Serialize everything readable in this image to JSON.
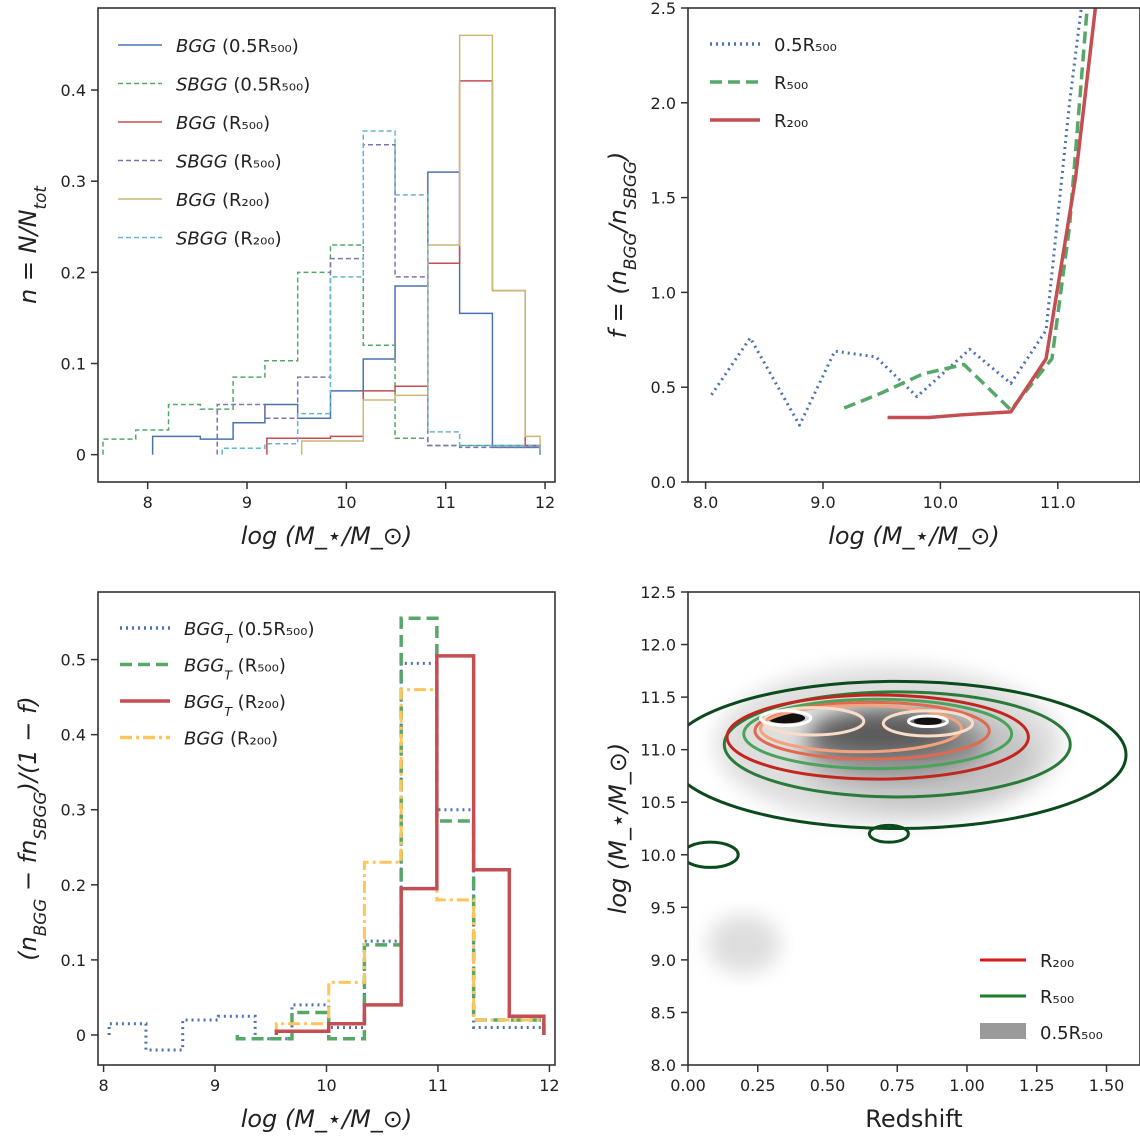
{
  "figure": {
    "width": 1140,
    "height": 1141
  },
  "chart_data": [
    {
      "id": "panel-a",
      "type": "line",
      "style": "step",
      "xlabel": "log (M_⋆/M_⊙)",
      "ylabel": "n = N/N_tot",
      "xlim": [
        7.5,
        12.1
      ],
      "ylim": [
        -0.03,
        0.49
      ],
      "xticks": [
        8,
        9,
        10,
        11,
        12
      ],
      "yticks": [
        0.0,
        0.1,
        0.2,
        0.3,
        0.4
      ],
      "grid": false,
      "legend": "top-left",
      "edges": [
        7.55,
        7.88,
        8.21,
        8.53,
        8.86,
        9.18,
        9.51,
        9.84,
        10.17,
        10.49,
        10.82,
        11.14,
        11.47,
        11.8
      ],
      "series": [
        {
          "name": "BGG (0.5R500)",
          "color": "#4c72b0",
          "dash": "",
          "width": 1.5,
          "range": [
            8.05,
            11.95
          ],
          "values": [
            0.02,
            0.017,
            0.035,
            0.055,
            0.04,
            0.07,
            0.105,
            0.185,
            0.31,
            0.155,
            0.008
          ]
        },
        {
          "name": "SBGG (0.5R500)",
          "color": "#55a868",
          "dash": "5,3",
          "width": 1.5,
          "range": [
            7.55,
            11.95
          ],
          "values": [
            0.017,
            0.027,
            0.055,
            0.05,
            0.085,
            0.103,
            0.2,
            0.23,
            0.12,
            0.018,
            0.01
          ]
        },
        {
          "name": "BGG (R500)",
          "color": "#c44e52",
          "dash": "",
          "width": 1.5,
          "range": [
            9.2,
            11.95
          ],
          "values": [
            0.018,
            0.02,
            0.07,
            0.075,
            0.21,
            0.41,
            0.18,
            0.01
          ]
        },
        {
          "name": "SBGG (R500)",
          "color": "#8172b2",
          "dash": "5,3",
          "width": 1.5,
          "range": [
            8.7,
            11.95
          ],
          "values": [
            0.055,
            0.04,
            0.085,
            0.215,
            0.34,
            0.195,
            0.01,
            0.008
          ]
        },
        {
          "name": "BGG (R200)",
          "color": "#ccb974",
          "dash": "",
          "width": 1.5,
          "range": [
            9.55,
            11.95
          ],
          "values": [
            0.015,
            0.06,
            0.065,
            0.23,
            0.46,
            0.18,
            0.02
          ]
        },
        {
          "name": "SBGG (R200)",
          "color": "#64b5cd",
          "dash": "5,3",
          "width": 1.5,
          "range": [
            8.75,
            11.95
          ],
          "values": [
            0.007,
            0.012,
            0.045,
            0.195,
            0.355,
            0.285,
            0.025,
            0.01
          ]
        }
      ],
      "legend_items": [
        {
          "label": "BGG (0.5R₅₀₀)",
          "color": "#4c72b0",
          "dash": ""
        },
        {
          "label": "SBGG (0.5R₅₀₀)",
          "color": "#55a868",
          "dash": "5,3"
        },
        {
          "label": "BGG (R₅₀₀)",
          "color": "#c44e52",
          "dash": ""
        },
        {
          "label": "SBGG (R₅₀₀)",
          "color": "#8172b2",
          "dash": "5,3"
        },
        {
          "label": "BGG (R₂₀₀)",
          "color": "#ccb974",
          "dash": ""
        },
        {
          "label": "SBGG (R₂₀₀)",
          "color": "#64b5cd",
          "dash": "5,3"
        }
      ]
    },
    {
      "id": "panel-b",
      "type": "line",
      "xlabel": "log (M_⋆/M_⊙)",
      "ylabel": "f = (n_BGG/n_SBGG)",
      "xlim": [
        7.85,
        11.7
      ],
      "ylim": [
        0.0,
        2.5
      ],
      "xticks": [
        8,
        9,
        10,
        11
      ],
      "yticks": [
        0.0,
        0.5,
        1.0,
        1.5,
        2.0,
        2.5
      ],
      "grid": false,
      "legend": "top-left",
      "series": [
        {
          "name": "0.5R500",
          "color": "#4c72b0",
          "dash": "2,4",
          "width": 3,
          "x": [
            8.05,
            8.38,
            8.8,
            9.1,
            9.45,
            9.8,
            10.25,
            10.6,
            10.9,
            11.1,
            11.2
          ],
          "y": [
            0.46,
            0.76,
            0.3,
            0.69,
            0.66,
            0.45,
            0.7,
            0.52,
            0.8,
            2.0,
            2.5
          ]
        },
        {
          "name": "R500",
          "color": "#55a868",
          "dash": "12,6",
          "width": 3.5,
          "x": [
            9.18,
            9.5,
            9.85,
            10.2,
            10.6,
            10.95,
            11.1,
            11.25
          ],
          "y": [
            0.39,
            0.47,
            0.57,
            0.62,
            0.38,
            0.65,
            1.35,
            2.5
          ]
        },
        {
          "name": "R200",
          "color": "#c44e52",
          "dash": "",
          "width": 3.5,
          "x": [
            9.55,
            9.9,
            10.2,
            10.6,
            10.9,
            11.15,
            11.32
          ],
          "y": [
            0.34,
            0.34,
            0.355,
            0.37,
            0.65,
            1.6,
            2.5
          ]
        }
      ],
      "legend_items": [
        {
          "label": "0.5R₅₀₀",
          "color": "#4c72b0",
          "dash": "2,4"
        },
        {
          "label": "R₅₀₀",
          "color": "#55a868",
          "dash": "12,6"
        },
        {
          "label": "R₂₀₀",
          "color": "#c44e52",
          "dash": ""
        }
      ]
    },
    {
      "id": "panel-c",
      "type": "line",
      "style": "step",
      "xlabel": "log (M_⋆/M_⊙)",
      "ylabel": "(n_BGG − fn_SBGG)/(1 − f)",
      "xlim": [
        7.95,
        12.05
      ],
      "ylim": [
        -0.04,
        0.59
      ],
      "xticks": [
        8,
        9,
        10,
        11,
        12
      ],
      "yticks": [
        0.0,
        0.1,
        0.2,
        0.3,
        0.4,
        0.5
      ],
      "grid": false,
      "legend": "top-left",
      "edges": [
        8.05,
        8.38,
        8.71,
        9.03,
        9.36,
        9.69,
        10.02,
        10.34,
        10.67,
        10.99,
        11.32,
        11.64
      ],
      "series": [
        {
          "name": "BGG_T (0.5R500)",
          "color": "#4c72b0",
          "dash": "2,4",
          "width": 3,
          "range": [
            8.05,
            11.95
          ],
          "values": [
            0.015,
            -0.02,
            0.02,
            0.025,
            -0.005,
            0.04,
            0.01,
            0.125,
            0.495,
            0.3,
            0.01
          ]
        },
        {
          "name": "BGG_T (R500)",
          "color": "#55a868",
          "dash": "12,6",
          "width": 3.5,
          "range": [
            9.2,
            11.95
          ],
          "values": [
            -0.005,
            0.03,
            -0.005,
            0.12,
            0.555,
            0.285,
            0.02
          ]
        },
        {
          "name": "BGG (R200)",
          "color": "#ffc45a",
          "dash": "12,4,3,4",
          "width": 3,
          "range": [
            9.55,
            11.95
          ],
          "values": [
            0.015,
            0.07,
            0.23,
            0.46,
            0.18,
            0.02
          ]
        },
        {
          "name": "BGG_T (R200)",
          "color": "#c44e52",
          "dash": "",
          "width": 3.5,
          "range": [
            9.55,
            11.95
          ],
          "values": [
            0.005,
            0.015,
            0.04,
            0.195,
            0.505,
            0.22,
            0.025
          ]
        }
      ],
      "legend_items": [
        {
          "label": "BGG_T (0.5R₅₀₀)",
          "color": "#4c72b0",
          "dash": "2,4"
        },
        {
          "label": "BGG_T (R₅₀₀)",
          "color": "#55a868",
          "dash": "12,6"
        },
        {
          "label": "BGG_T (R₂₀₀)",
          "color": "#c44e52",
          "dash": ""
        },
        {
          "label": "BGG (R₂₀₀)",
          "color": "#ffc45a",
          "dash": "12,4,3,4"
        }
      ]
    },
    {
      "id": "panel-d",
      "type": "heatmap",
      "style": "kde-contour",
      "xlabel": "Redshift",
      "ylabel": "log (M_⋆/M_⊙)",
      "xlim": [
        0.0,
        1.62
      ],
      "ylim": [
        8.0,
        12.5
      ],
      "xticks": [
        0.0,
        0.25,
        0.5,
        0.75,
        1.0,
        1.25,
        1.5
      ],
      "yticks": [
        8.0,
        8.5,
        9.0,
        9.5,
        10.0,
        10.5,
        11.0,
        11.5,
        12.0,
        12.5
      ],
      "grid": false,
      "legend": "bottom-right",
      "filled_blobs": [
        {
          "z": 0.72,
          "m": 11.05,
          "sz": 0.62,
          "sm": 0.75,
          "fill": "#dedede"
        },
        {
          "z": 0.82,
          "m": 10.95,
          "sz": 0.42,
          "sm": 0.5,
          "fill": "#c4c4c4"
        },
        {
          "z": 0.2,
          "m": 9.15,
          "sz": 0.13,
          "sm": 0.28,
          "fill": "#dedede"
        },
        {
          "z": 0.75,
          "m": 11.05,
          "sz": 0.32,
          "sm": 0.3,
          "fill": "#8a8a8a"
        },
        {
          "z": 0.7,
          "m": 11.15,
          "sz": 0.25,
          "sm": 0.18,
          "fill": "#5a5a5a"
        },
        {
          "z": 0.35,
          "m": 11.3,
          "sz": 0.07,
          "sm": 0.05,
          "fill": "#111111"
        },
        {
          "z": 0.86,
          "m": 11.27,
          "sz": 0.05,
          "sm": 0.04,
          "fill": "#111111"
        }
      ],
      "contours": [
        {
          "z": 0.75,
          "m": 10.95,
          "rz": 0.82,
          "rm": 0.7,
          "color": "#0b4a1c",
          "w": 3
        },
        {
          "z": 0.75,
          "m": 11.05,
          "rz": 0.62,
          "rm": 0.5,
          "color": "#2a7a3a",
          "w": 3
        },
        {
          "z": 0.68,
          "m": 11.12,
          "rz": 0.54,
          "rm": 0.4,
          "color": "#c2261f",
          "w": 3
        },
        {
          "z": 0.68,
          "m": 11.15,
          "rz": 0.48,
          "rm": 0.33,
          "color": "#4aa35a",
          "w": 3
        },
        {
          "z": 0.66,
          "m": 11.18,
          "rz": 0.42,
          "rm": 0.27,
          "color": "#e06a50",
          "w": 3
        },
        {
          "z": 0.62,
          "m": 11.2,
          "rz": 0.36,
          "rm": 0.22,
          "color": "#f2a27c",
          "w": 3
        },
        {
          "z": 0.45,
          "m": 11.27,
          "rz": 0.18,
          "rm": 0.13,
          "color": "#f9ddc8",
          "w": 3
        },
        {
          "z": 0.86,
          "m": 11.25,
          "rz": 0.16,
          "rm": 0.12,
          "color": "#f9ddc8",
          "w": 3
        },
        {
          "z": 0.35,
          "m": 11.3,
          "rz": 0.09,
          "rm": 0.07,
          "color": "#ffffff",
          "w": 3
        },
        {
          "z": 0.86,
          "m": 11.27,
          "rz": 0.07,
          "rm": 0.05,
          "color": "#ffffff",
          "w": 3
        },
        {
          "z": 0.72,
          "m": 10.2,
          "rz": 0.07,
          "rm": 0.08,
          "color": "#0b4a1c",
          "w": 3
        },
        {
          "z": 0.08,
          "m": 10.0,
          "rz": 0.1,
          "rm": 0.12,
          "color": "#0b4a1c",
          "w": 3
        }
      ],
      "legend_items": [
        {
          "label": "R₂₀₀",
          "color": "#d7191c",
          "kind": "line"
        },
        {
          "label": "R₅₀₀",
          "color": "#1a7f2a",
          "kind": "line"
        },
        {
          "label": "0.5R₅₀₀",
          "color": "#9a9a9a",
          "kind": "patch"
        }
      ]
    }
  ]
}
